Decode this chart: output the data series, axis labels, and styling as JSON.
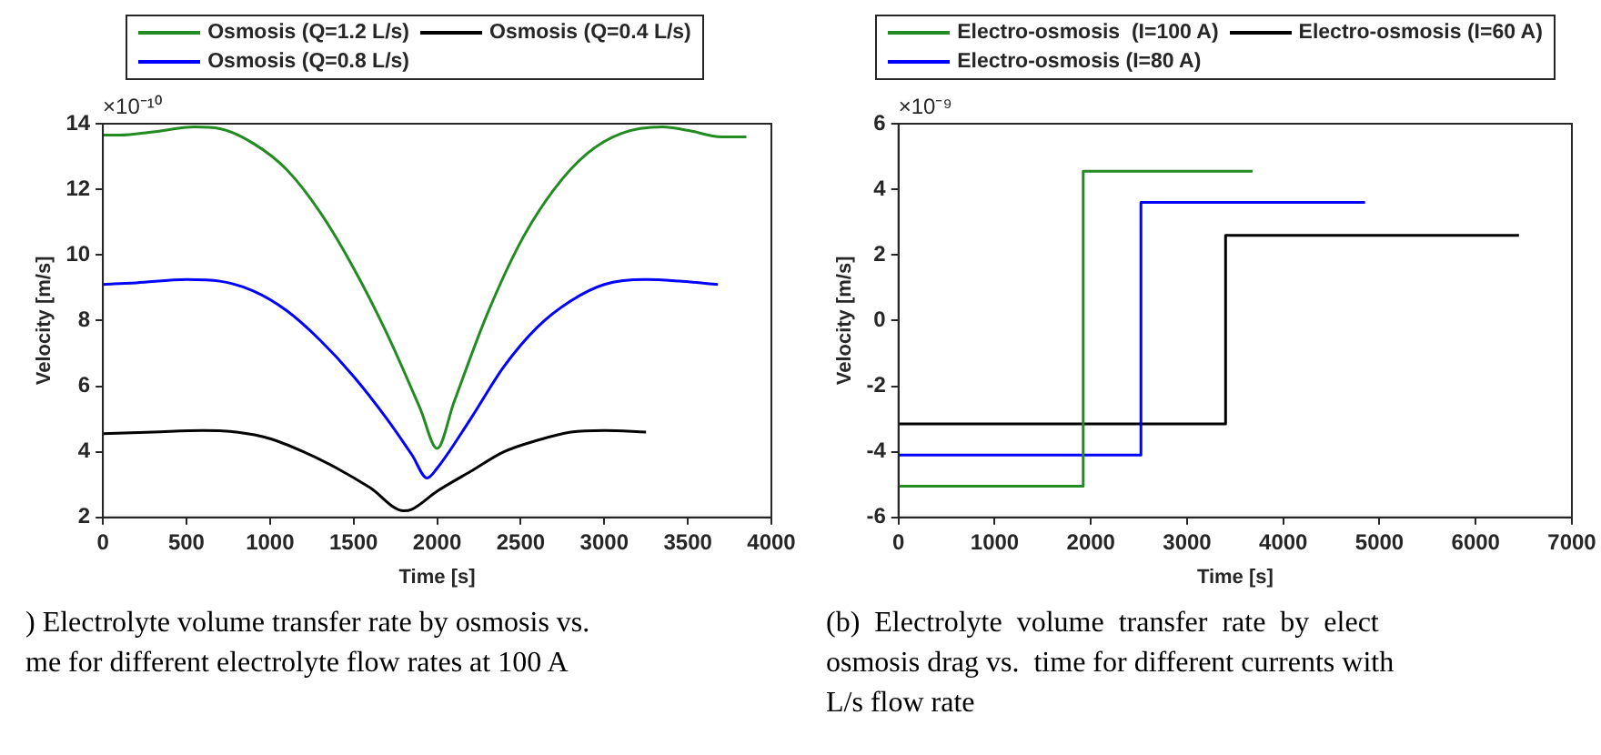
{
  "chart_data": [
    {
      "type": "line",
      "xlabel": "Time [s]",
      "ylabel": "Velocity [m/s]",
      "xlim": [
        0,
        4000
      ],
      "ylim": [
        2,
        14
      ],
      "xticks": [
        0,
        500,
        1000,
        1500,
        2000,
        2500,
        3000,
        3500,
        4000
      ],
      "yticks": [
        2,
        4,
        6,
        8,
        10,
        12,
        14
      ],
      "legend": "top",
      "marker": "none",
      "line_style": "solid",
      "annotations": [
        "×10⁻¹⁰",
        ") Electrolyte volume transfer rate by osmosis vs.",
        "me for different electrolyte flow rates at 100 A"
      ],
      "series": [
        {
          "name": "Osmosis (Q=1.2 L/s)",
          "color": "#228b22",
          "x": [
            0,
            100,
            300,
            550,
            700,
            900,
            1100,
            1300,
            1500,
            1700,
            1900,
            2000,
            2100,
            2300,
            2500,
            2700,
            2900,
            3100,
            3350,
            3500,
            3700,
            3850
          ],
          "values": [
            13.65,
            13.65,
            13.75,
            13.9,
            13.85,
            13.4,
            12.6,
            11.3,
            9.6,
            7.6,
            5.3,
            4.1,
            5.5,
            8.2,
            10.4,
            12.0,
            13.1,
            13.7,
            13.9,
            13.8,
            13.6,
            13.6
          ]
        },
        {
          "name": "Osmosis (Q=0.8 L/s)",
          "color": "#0000ff",
          "x": [
            0,
            200,
            500,
            700,
            900,
            1100,
            1300,
            1500,
            1700,
            1850,
            1940,
            2000,
            2200,
            2400,
            2600,
            2800,
            3000,
            3250,
            3450,
            3680
          ],
          "values": [
            9.1,
            9.15,
            9.25,
            9.2,
            8.9,
            8.3,
            7.4,
            6.3,
            5.0,
            3.9,
            3.2,
            3.5,
            5.0,
            6.6,
            7.8,
            8.6,
            9.1,
            9.25,
            9.2,
            9.1
          ]
        },
        {
          "name": "Osmosis (Q=0.4 L/s)",
          "color": "#000000",
          "x": [
            0,
            300,
            600,
            800,
            1000,
            1200,
            1400,
            1600,
            1800,
            1850,
            2000,
            2200,
            2400,
            2600,
            2800,
            3000,
            3250
          ],
          "values": [
            4.55,
            4.6,
            4.65,
            4.6,
            4.4,
            4.0,
            3.5,
            2.9,
            2.2,
            2.25,
            2.8,
            3.4,
            4.0,
            4.35,
            4.6,
            4.65,
            4.6
          ]
        }
      ]
    },
    {
      "type": "step",
      "xlabel": "Time [s]",
      "ylabel": "Velocity [m/s]",
      "xlim": [
        0,
        7000
      ],
      "ylim": [
        -6,
        6
      ],
      "xticks": [
        0,
        1000,
        2000,
        3000,
        4000,
        5000,
        6000,
        7000
      ],
      "yticks": [
        -6,
        -4,
        -2,
        0,
        2,
        4,
        6
      ],
      "legend": "top",
      "marker": "none",
      "line_style": "solid",
      "annotations": [
        "×10⁻⁹",
        "(b)  Electrolyte  volume  transfer  rate  by  elect",
        "osmosis drag vs.  time for different currents with",
        "L/s flow rate"
      ],
      "series": [
        {
          "name": "Electro-osmosis  (I=100 A)",
          "color": "#228b22",
          "x": [
            0,
            1920,
            3680
          ],
          "values": [
            -5.05,
            4.55,
            4.55
          ]
        },
        {
          "name": "Electro-osmosis (I=80 A)",
          "color": "#0000ff",
          "x": [
            0,
            2520,
            4850
          ],
          "values": [
            -4.1,
            3.6,
            3.6
          ]
        },
        {
          "name": "Electro-osmosis (I=60 A)",
          "color": "#000000",
          "x": [
            0,
            3400,
            6450
          ],
          "values": [
            -3.15,
            2.6,
            2.6
          ]
        }
      ]
    }
  ]
}
